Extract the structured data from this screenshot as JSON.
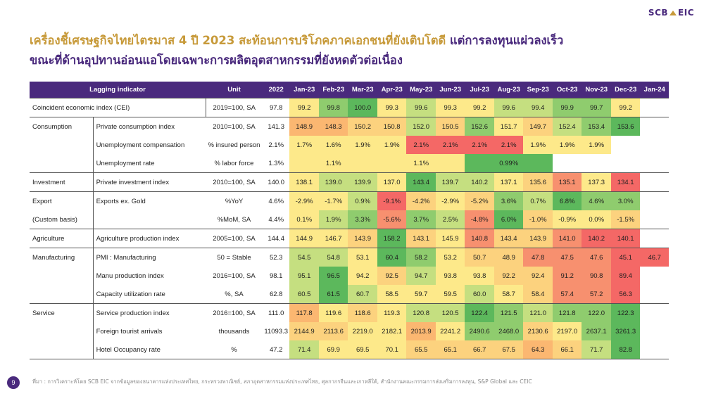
{
  "logo": {
    "left": "SCB",
    "right": "EIC"
  },
  "title": {
    "part1": "เครื่องชี้เศรษฐกิจไทยไตรมาส 4 ปี 2023 สะท้อนการบริโภคภาคเอกชนที่ยังเติบโตดี",
    "part2": "แต่การลงทุนแผ่วลงเร็ว",
    "line2": "ขณะที่ด้านอุปทานอ่อนแอโดยเฉพาะการผลิตอุตสาหกรรมที่ยังหดตัวต่อเนื่อง"
  },
  "table": {
    "headers": [
      "Lagging indicator",
      "Unit",
      "2022",
      "Jan-23",
      "Feb-23",
      "Mar-23",
      "Apr-23",
      "May-23",
      "Jun-23",
      "Jul-23",
      "Aug-23",
      "Sep-23",
      "Oct-23",
      "Nov-23",
      "Dec-23",
      "Jan-24"
    ],
    "colors": {
      "g": "#5cb85c",
      "lg": "#8fcc6e",
      "yg": "#c5df80",
      "y": "#fde98a",
      "o": "#fbb771",
      "lo": "#fcd27e",
      "r": "#f46866",
      "lr": "#f7906f"
    },
    "rows": [
      {
        "cat": "Coincident economic index (CEI)",
        "span": true,
        "unit": "2019=100, SA",
        "y2022": "97.8",
        "cells": [
          [
            "99.2",
            "y"
          ],
          [
            "99.8",
            "lg"
          ],
          [
            "100.0",
            "g"
          ],
          [
            "99.3",
            "y"
          ],
          [
            "99.6",
            "yg"
          ],
          [
            "99.3",
            "y"
          ],
          [
            "99.2",
            "y"
          ],
          [
            "99.6",
            "yg"
          ],
          [
            "99.4",
            "yg"
          ],
          [
            "99.9",
            "lg"
          ],
          [
            "99.7",
            "lg"
          ],
          [
            "99.2",
            "y"
          ],
          [
            "",
            ""
          ]
        ]
      },
      {
        "cat": "Consumption",
        "ind": "Private consumption index",
        "unit": "2010=100, SA",
        "y2022": "141.3",
        "cells": [
          [
            "148.9",
            "o"
          ],
          [
            "148.3",
            "o"
          ],
          [
            "150.2",
            "lo"
          ],
          [
            "150.8",
            "lo"
          ],
          [
            "152.0",
            "yg"
          ],
          [
            "150.5",
            "lo"
          ],
          [
            "152.6",
            "lg"
          ],
          [
            "151.7",
            "y"
          ],
          [
            "149.7",
            "lo"
          ],
          [
            "152.4",
            "yg"
          ],
          [
            "153.4",
            "lg"
          ],
          [
            "153.6",
            "g"
          ],
          [
            "",
            ""
          ]
        ]
      },
      {
        "cat": "",
        "ind": "Unemployment compensation",
        "unit": "% insured person",
        "y2022": "2.1%",
        "cells": [
          [
            "1.7%",
            "y"
          ],
          [
            "1.6%",
            "y"
          ],
          [
            "1.9%",
            "y"
          ],
          [
            "1.9%",
            "y"
          ],
          [
            "2.1%",
            "r"
          ],
          [
            "2.1%",
            "r"
          ],
          [
            "2.1%",
            "r"
          ],
          [
            "2.1%",
            "r"
          ],
          [
            "1.9%",
            "y"
          ],
          [
            "1.9%",
            "y"
          ],
          [
            "1.9%",
            "y"
          ],
          [
            "",
            ""
          ],
          [
            "",
            ""
          ]
        ]
      },
      {
        "cat": "",
        "ind": "Unemployment rate",
        "unit": "% labor force",
        "y2022": "1.3%",
        "cells": [
          [
            "",
            "y"
          ],
          [
            "1.1%",
            "y"
          ],
          [
            "",
            "y"
          ],
          [
            "",
            "y"
          ],
          [
            "1.1%",
            "y"
          ],
          [
            "",
            "y"
          ],
          [
            "",
            "g"
          ],
          [
            "0.99%",
            "g"
          ],
          [
            "",
            "g"
          ],
          [
            "",
            ""
          ],
          [
            "",
            ""
          ],
          [
            "",
            ""
          ],
          [
            "",
            ""
          ]
        ]
      },
      {
        "cat": "Investment",
        "ind": "Private investment index",
        "unit": "2010=100, SA",
        "y2022": "140.0",
        "cells": [
          [
            "138.1",
            "y"
          ],
          [
            "139.0",
            "yg"
          ],
          [
            "139.9",
            "yg"
          ],
          [
            "137.0",
            "y"
          ],
          [
            "143.4",
            "g"
          ],
          [
            "139.7",
            "yg"
          ],
          [
            "140.2",
            "yg"
          ],
          [
            "137.1",
            "y"
          ],
          [
            "135.6",
            "lo"
          ],
          [
            "135.1",
            "lr"
          ],
          [
            "137.3",
            "y"
          ],
          [
            "134.1",
            "r"
          ],
          [
            "",
            ""
          ]
        ]
      },
      {
        "cat": "Export",
        "ind": "Exports ex. Gold",
        "unit": "%YoY",
        "y2022": "4.6%",
        "cells": [
          [
            "-2.9%",
            "y"
          ],
          [
            "-1.7%",
            "y"
          ],
          [
            "0.9%",
            "yg"
          ],
          [
            "-9.1%",
            "r"
          ],
          [
            "-4.2%",
            "lo"
          ],
          [
            "-2.9%",
            "y"
          ],
          [
            "-5.2%",
            "lo"
          ],
          [
            "3.6%",
            "lg"
          ],
          [
            "0.7%",
            "yg"
          ],
          [
            "6.8%",
            "g"
          ],
          [
            "4.6%",
            "lg"
          ],
          [
            "3.0%",
            "lg"
          ],
          [
            "",
            ""
          ]
        ]
      },
      {
        "cat": "(Custom basis)",
        "ind": "",
        "unit": "%MoM, SA",
        "y2022": "4.4%",
        "cells": [
          [
            "0.1%",
            "y"
          ],
          [
            "1.9%",
            "yg"
          ],
          [
            "3.3%",
            "lg"
          ],
          [
            "-5.6%",
            "lr"
          ],
          [
            "3.7%",
            "lg"
          ],
          [
            "2.5%",
            "yg"
          ],
          [
            "-4.8%",
            "lr"
          ],
          [
            "6.0%",
            "g"
          ],
          [
            "-1.0%",
            "lo"
          ],
          [
            "-0.9%",
            "y"
          ],
          [
            "0.0%",
            "y"
          ],
          [
            "-1.5%",
            "lo"
          ],
          [
            "",
            ""
          ]
        ]
      },
      {
        "cat": "Agriculture",
        "ind": "Agriculture production index",
        "unit": "2005=100, SA",
        "y2022": "144.4",
        "cells": [
          [
            "144.9",
            "y"
          ],
          [
            "146.7",
            "y"
          ],
          [
            "143.9",
            "lo"
          ],
          [
            "158.2",
            "g"
          ],
          [
            "143.1",
            "lo"
          ],
          [
            "145.9",
            "y"
          ],
          [
            "140.8",
            "lr"
          ],
          [
            "143.4",
            "lo"
          ],
          [
            "143.9",
            "lo"
          ],
          [
            "141.0",
            "lr"
          ],
          [
            "140.2",
            "r"
          ],
          [
            "140.1",
            "r"
          ],
          [
            "",
            ""
          ]
        ]
      },
      {
        "cat": "Manufacturing",
        "ind": "PMI : Manufacturing",
        "unit": "50 = Stable",
        "y2022": "52.3",
        "cells": [
          [
            "54.5",
            "yg"
          ],
          [
            "54.8",
            "yg"
          ],
          [
            "53.1",
            "y"
          ],
          [
            "60.4",
            "g"
          ],
          [
            "58.2",
            "lg"
          ],
          [
            "53.2",
            "y"
          ],
          [
            "50.7",
            "lo"
          ],
          [
            "48.9",
            "lo"
          ],
          [
            "47.8",
            "lr"
          ],
          [
            "47.5",
            "lr"
          ],
          [
            "47.6",
            "lr"
          ],
          [
            "45.1",
            "r"
          ],
          [
            "46.7",
            "r"
          ]
        ]
      },
      {
        "cat": "",
        "ind": "Manu production index",
        "unit": "2016=100, SA",
        "y2022": "98.1",
        "cells": [
          [
            "95.1",
            "yg"
          ],
          [
            "96.5",
            "g"
          ],
          [
            "94.2",
            "y"
          ],
          [
            "92.5",
            "lo"
          ],
          [
            "94.7",
            "yg"
          ],
          [
            "93.8",
            "y"
          ],
          [
            "93.8",
            "y"
          ],
          [
            "92.2",
            "lo"
          ],
          [
            "92.4",
            "lo"
          ],
          [
            "91.2",
            "lr"
          ],
          [
            "90.8",
            "lr"
          ],
          [
            "89.4",
            "r"
          ],
          [
            "",
            ""
          ]
        ]
      },
      {
        "cat": "",
        "ind": "Capacity utilization rate",
        "unit": "%, SA",
        "y2022": "62.8",
        "cells": [
          [
            "60.5",
            "yg"
          ],
          [
            "61.5",
            "g"
          ],
          [
            "60.7",
            "yg"
          ],
          [
            "58.5",
            "y"
          ],
          [
            "59.7",
            "y"
          ],
          [
            "59.5",
            "y"
          ],
          [
            "60.0",
            "yg"
          ],
          [
            "58.7",
            "y"
          ],
          [
            "58.4",
            "lo"
          ],
          [
            "57.4",
            "lr"
          ],
          [
            "57.2",
            "lr"
          ],
          [
            "56.3",
            "r"
          ],
          [
            "",
            ""
          ]
        ]
      },
      {
        "cat": "Service",
        "ind": "Service production index",
        "unit": "2016=100, SA",
        "y2022": "111.0",
        "cells": [
          [
            "117.8",
            "o"
          ],
          [
            "119.6",
            "y"
          ],
          [
            "118.6",
            "lo"
          ],
          [
            "119.3",
            "y"
          ],
          [
            "120.8",
            "yg"
          ],
          [
            "120.5",
            "yg"
          ],
          [
            "122.4",
            "g"
          ],
          [
            "121.5",
            "lg"
          ],
          [
            "121.0",
            "yg"
          ],
          [
            "121.8",
            "lg"
          ],
          [
            "122.0",
            "lg"
          ],
          [
            "122.3",
            "g"
          ],
          [
            "",
            ""
          ]
        ]
      },
      {
        "cat": "",
        "ind": "Foreign tourist arrivals",
        "unit": "thousands",
        "y2022": "11093.3",
        "cells": [
          [
            "2144.9",
            "lo"
          ],
          [
            "2113.6",
            "lo"
          ],
          [
            "2219.0",
            "y"
          ],
          [
            "2182.1",
            "y"
          ],
          [
            "2013.9",
            "o"
          ],
          [
            "2241.2",
            "y"
          ],
          [
            "2490.6",
            "lg"
          ],
          [
            "2468.0",
            "lg"
          ],
          [
            "2130.6",
            "lo"
          ],
          [
            "2197.0",
            "y"
          ],
          [
            "2637.1",
            "lg"
          ],
          [
            "3261.3",
            "g"
          ],
          [
            "",
            ""
          ]
        ]
      },
      {
        "cat": "",
        "ind": "Hotel Occupancy rate",
        "unit": "%",
        "y2022": "47.2",
        "cells": [
          [
            "71.4",
            "yg"
          ],
          [
            "69.9",
            "y"
          ],
          [
            "69.5",
            "y"
          ],
          [
            "70.1",
            "y"
          ],
          [
            "65.5",
            "lo"
          ],
          [
            "65.1",
            "lo"
          ],
          [
            "66.7",
            "lo"
          ],
          [
            "67.5",
            "lo"
          ],
          [
            "64.3",
            "o"
          ],
          [
            "66.1",
            "lo"
          ],
          [
            "71.7",
            "yg"
          ],
          [
            "82.8",
            "g"
          ],
          [
            "",
            ""
          ]
        ]
      }
    ]
  },
  "footer": {
    "page": "9",
    "source": "ที่มา : การวิเคราะห์โดย SCB EIC จากข้อมูลของธนาคารแห่งประเทศไทย, กระทรวงพาณิชย์, สภาอุตสาหกรรมแห่งประเทศไทย, ศุลกากรจีนและเกาหลีใต้, สำนักงานคณะกรรมการส่งเสริมการลงทุน, S&P Global และ CEIC"
  }
}
